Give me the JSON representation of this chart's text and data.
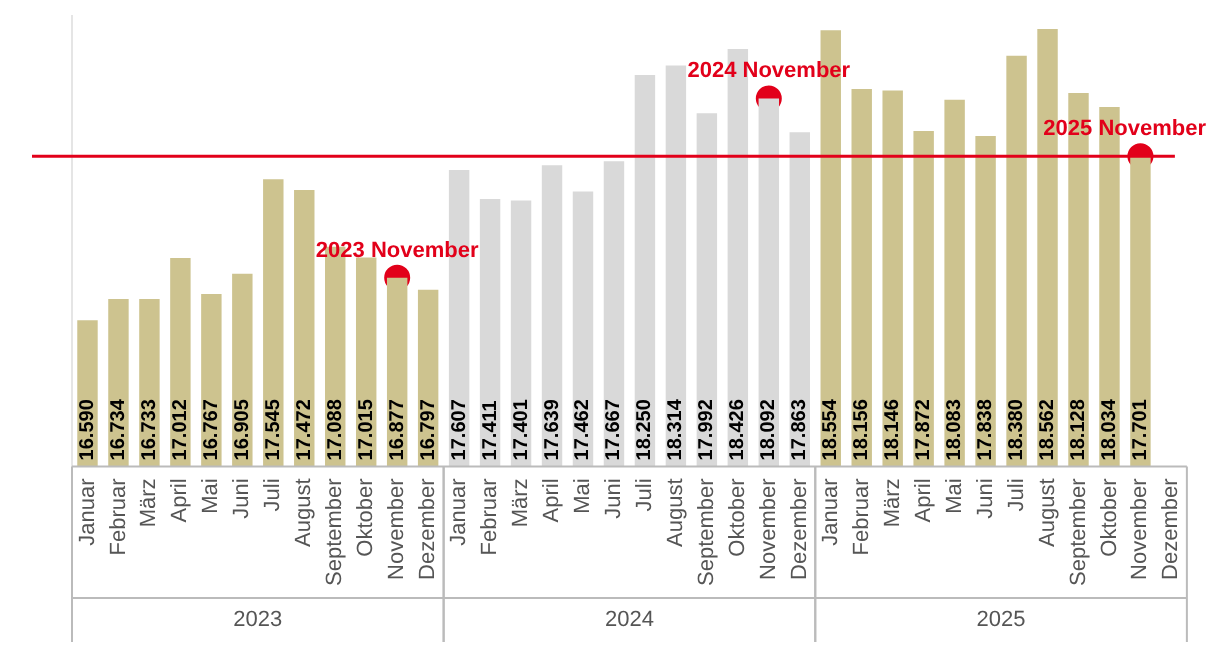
{
  "chart_data": {
    "type": "bar",
    "categories": [
      "Januar",
      "Februar",
      "März",
      "April",
      "Mai",
      "Juni",
      "Juli",
      "August",
      "September",
      "Oktober",
      "November",
      "Dezember",
      "Januar",
      "Februar",
      "März",
      "April",
      "Mai",
      "Juni",
      "Juli",
      "August",
      "September",
      "Oktober",
      "November",
      "Dezember",
      "Januar",
      "Februar",
      "März",
      "April",
      "Mai",
      "Juni",
      "Juli",
      "August",
      "September",
      "Oktober",
      "November",
      "Dezember"
    ],
    "annotations": [
      "2023",
      "2024",
      "2025"
    ],
    "ylim": [
      15600,
      18650
    ],
    "relative": false,
    "series": [
      {
        "values": [
          16590,
          16734,
          16733,
          17012,
          16767,
          16905,
          17545,
          17472,
          17088,
          17015,
          16877,
          16797,
          17607,
          17411,
          17401,
          17639,
          17462,
          17667,
          18250,
          18314,
          17992,
          18426,
          18092,
          17863,
          18554,
          18156,
          18146,
          17872,
          18083,
          17838,
          18380,
          18562,
          18128,
          18034,
          17701,
          null
        ],
        "value_labels": [
          "16.590",
          "16.734",
          "16.733",
          "17.012",
          "16.767",
          "16.905",
          "17.545",
          "17.472",
          "17.088",
          "17.015",
          "16.877",
          "16.797",
          "17.607",
          "17.411",
          "17.401",
          "17.639",
          "17.462",
          "17.667",
          "18.250",
          "18.314",
          "17.992",
          "18.426",
          "18.092",
          "17.863",
          "18.554",
          "18.156",
          "18.146",
          "17.872",
          "18.083",
          "17.838",
          "18.380",
          "18.562",
          "18.128",
          "18.034",
          "17.701",
          null
        ],
        "colors": [
          "#cdc38f",
          "#cdc38f",
          "#cdc38f",
          "#cdc38f",
          "#cdc38f",
          "#cdc38f",
          "#cdc38f",
          "#cdc38f",
          "#cdc38f",
          "#cdc38f",
          "#cdc38f",
          "#cdc38f",
          "#d9d9d9",
          "#d9d9d9",
          "#d9d9d9",
          "#d9d9d9",
          "#d9d9d9",
          "#d9d9d9",
          "#d9d9d9",
          "#d9d9d9",
          "#d9d9d9",
          "#d9d9d9",
          "#d9d9d9",
          "#d9d9d9",
          "#cdc38f",
          "#cdc38f",
          "#cdc38f",
          "#cdc38f",
          "#cdc38f",
          "#cdc38f",
          "#cdc38f",
          "#cdc38f",
          "#cdc38f",
          "#cdc38f",
          "#cdc38f",
          "#cdc38f"
        ]
      },
      {
        "type": "scatter",
        "color": "#e2001a",
        "values": [
          null,
          null,
          null,
          null,
          null,
          null,
          null,
          null,
          null,
          null,
          16877,
          null,
          null,
          null,
          null,
          null,
          null,
          null,
          null,
          null,
          null,
          null,
          18092,
          null,
          null,
          null,
          null,
          null,
          null,
          null,
          null,
          null,
          null,
          null,
          17701,
          null
        ],
        "value_labels": [
          null,
          null,
          null,
          null,
          null,
          null,
          null,
          null,
          null,
          null,
          "2023 November",
          null,
          null,
          null,
          null,
          null,
          null,
          null,
          null,
          null,
          null,
          null,
          "2024 November",
          null,
          null,
          null,
          null,
          null,
          null,
          null,
          null,
          null,
          null,
          null,
          "2025 November",
          null
        ]
      }
    ],
    "ref_lines": [
      {
        "axis": "y",
        "value": 17701,
        "color": "#e2001a"
      }
    ],
    "grid": false,
    "legend": false,
    "marker": "circle"
  }
}
